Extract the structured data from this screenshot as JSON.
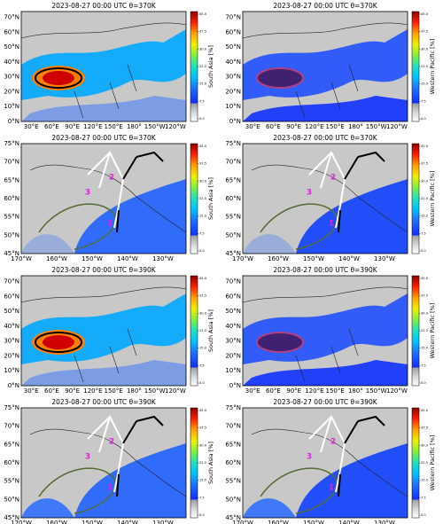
{
  "panels": [
    {
      "title": "2023-08-27 00:00 UTC θ=370K",
      "colorbar_label": "South Asia [%]",
      "colorbar_ticks": [
        {
          "value": 0,
          "label": "0.0"
        },
        {
          "value": 7.5,
          "label": "7.5"
        },
        {
          "value": 15,
          "label": "15.0"
        },
        {
          "value": 22.5,
          "label": "22.5"
        },
        {
          "value": 30,
          "label": "30.0"
        },
        {
          "value": 37.5,
          "label": "37.5"
        },
        {
          "value": 45,
          "label": "45.0"
        }
      ],
      "lat_ticks": [
        "0°N",
        "10°N",
        "20°N",
        "30°N",
        "40°N",
        "50°N",
        "60°N",
        "70°N"
      ],
      "lon_ticks": [
        "30°E",
        "60°E",
        "90°E",
        "120°E",
        "150°E",
        "180°",
        "150°W",
        "120°W"
      ]
    },
    {
      "title": "2023-08-27 00:00 UTC θ=370K",
      "colorbar_label": "Western Pacific [%]",
      "colorbar_ticks": [
        {
          "value": 0,
          "label": "0.0"
        },
        {
          "value": 7.5,
          "label": "7.5"
        },
        {
          "value": 15,
          "label": "15.0"
        },
        {
          "value": 22.5,
          "label": "22.5"
        },
        {
          "value": 30,
          "label": "30.0"
        },
        {
          "value": 37.5,
          "label": "37.5"
        },
        {
          "value": 45,
          "label": "45.0"
        }
      ],
      "lat_ticks": [
        "0°N",
        "10°N",
        "20°N",
        "30°N",
        "40°N",
        "50°N",
        "60°N",
        "70°N"
      ],
      "lon_ticks": [
        "30°E",
        "60°E",
        "90°E",
        "120°E",
        "150°E",
        "180°",
        "150°W",
        "120°W"
      ]
    },
    {
      "title": "2023-08-27 00:00 UTC θ=370K",
      "colorbar_label": "South Asia [%]",
      "colorbar_ticks": [
        {
          "value": 0,
          "label": "0.0"
        },
        {
          "value": 7.5,
          "label": "7.5"
        },
        {
          "value": 15,
          "label": "15.0"
        },
        {
          "value": 22.5,
          "label": "22.5"
        },
        {
          "value": 30,
          "label": "30.0"
        },
        {
          "value": 37.5,
          "label": "37.5"
        },
        {
          "value": 45,
          "label": "45.0"
        }
      ],
      "lat_ticks": [
        "45°N",
        "50°N",
        "55°N",
        "60°N",
        "65°N",
        "70°N",
        "75°N"
      ],
      "lon_ticks": [
        "170°W",
        "160°W",
        "150°W",
        "140°W",
        "130°W"
      ],
      "route_labels": [
        "3",
        "2",
        "1"
      ]
    },
    {
      "title": "2023-08-27 00:00 UTC θ=370K",
      "colorbar_label": "Western Pacific [%]",
      "colorbar_ticks": [
        {
          "value": 0,
          "label": "0.0"
        },
        {
          "value": 7.5,
          "label": "7.5"
        },
        {
          "value": 15,
          "label": "15.0"
        },
        {
          "value": 22.5,
          "label": "22.5"
        },
        {
          "value": 30,
          "label": "30.0"
        },
        {
          "value": 37.5,
          "label": "37.5"
        },
        {
          "value": 45,
          "label": "45.0"
        }
      ],
      "lat_ticks": [
        "45°N",
        "50°N",
        "55°N",
        "60°N",
        "65°N",
        "70°N",
        "75°N"
      ],
      "lon_ticks": [
        "170°W",
        "160°W",
        "150°W",
        "140°W",
        "130°W"
      ],
      "route_labels": [
        "3",
        "2",
        "1"
      ]
    },
    {
      "title": "2023-08-27 00:00 UTC θ=390K",
      "colorbar_label": "South Asia [%]",
      "colorbar_ticks": [
        {
          "value": 0,
          "label": "0.0"
        },
        {
          "value": 7.5,
          "label": "7.5"
        },
        {
          "value": 15,
          "label": "15.0"
        },
        {
          "value": 22.5,
          "label": "22.5"
        },
        {
          "value": 30,
          "label": "30.0"
        },
        {
          "value": 37.5,
          "label": "37.5"
        },
        {
          "value": 45,
          "label": "45.0"
        }
      ],
      "lat_ticks": [
        "0°N",
        "10°N",
        "20°N",
        "30°N",
        "40°N",
        "50°N",
        "60°N",
        "70°N"
      ],
      "lon_ticks": [
        "30°E",
        "60°E",
        "90°E",
        "120°E",
        "150°E",
        "180°",
        "150°W",
        "120°W"
      ]
    },
    {
      "title": "2023-08-27 00:00 UTC θ=390K",
      "colorbar_label": "Western Pacific [%]",
      "colorbar_ticks": [
        {
          "value": 0,
          "label": "0.0"
        },
        {
          "value": 7.5,
          "label": "7.5"
        },
        {
          "value": 15,
          "label": "15.0"
        },
        {
          "value": 22.5,
          "label": "22.5"
        },
        {
          "value": 30,
          "label": "30.0"
        },
        {
          "value": 37.5,
          "label": "37.5"
        },
        {
          "value": 45,
          "label": "45.0"
        }
      ],
      "lat_ticks": [
        "0°N",
        "10°N",
        "20°N",
        "30°N",
        "40°N",
        "50°N",
        "60°N",
        "70°N"
      ],
      "lon_ticks": [
        "30°E",
        "60°E",
        "90°E",
        "120°E",
        "150°E",
        "180°",
        "150°W",
        "120°W"
      ]
    },
    {
      "title": "2023-08-27 00:00 UTC θ=390K",
      "colorbar_label": "South Asia [%]",
      "colorbar_ticks": [
        {
          "value": 0,
          "label": "0.0"
        },
        {
          "value": 7.5,
          "label": "7.5"
        },
        {
          "value": 15,
          "label": "15.0"
        },
        {
          "value": 22.5,
          "label": "22.5"
        },
        {
          "value": 30,
          "label": "30.0"
        },
        {
          "value": 37.5,
          "label": "37.5"
        },
        {
          "value": 45,
          "label": "45.0"
        }
      ],
      "lat_ticks": [
        "45°N",
        "50°N",
        "55°N",
        "60°N",
        "65°N",
        "70°N",
        "75°N"
      ],
      "lon_ticks": [
        "170°W",
        "160°W",
        "150°W",
        "140°W",
        "130°W"
      ],
      "route_labels": [
        "3",
        "2",
        "1"
      ]
    },
    {
      "title": "2023-08-27 00:00 UTC θ=390K",
      "colorbar_label": "Western Pacific [%]",
      "colorbar_ticks": [
        {
          "value": 0,
          "label": "0.0"
        },
        {
          "value": 7.5,
          "label": "7.5"
        },
        {
          "value": 15,
          "label": "15.0"
        },
        {
          "value": 22.5,
          "label": "22.5"
        },
        {
          "value": 30,
          "label": "30.0"
        },
        {
          "value": 37.5,
          "label": "37.5"
        },
        {
          "value": 45,
          "label": "45.0"
        }
      ],
      "lat_ticks": [
        "45°N",
        "50°N",
        "55°N",
        "60°N",
        "65°N",
        "70°N",
        "75°N"
      ],
      "lon_ticks": [
        "170°W",
        "160°W",
        "150°W",
        "140°W",
        "130°W"
      ],
      "route_labels": [
        "3",
        "2",
        "1"
      ]
    }
  ]
}
